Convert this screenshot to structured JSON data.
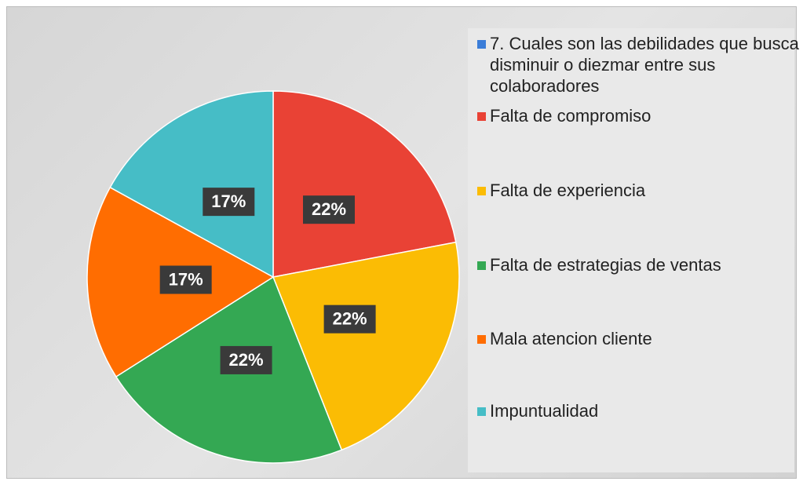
{
  "chart_data": {
    "type": "pie",
    "categories": [
      "7. Cuales son las debilidades que busca disminuir o diezmar entre sus colaboradores",
      "Falta de compromiso",
      "Falta de experiencia",
      "Falta de estrategias de ventas",
      "Mala atencion cliente",
      "Impuntualidad"
    ],
    "values": [
      0,
      22,
      22,
      22,
      17,
      17
    ],
    "value_labels": [
      null,
      "22%",
      "22%",
      "22%",
      "17%",
      "17%"
    ],
    "colors": [
      "#3b7dd8",
      "#e94235",
      "#fbbc04",
      "#34a853",
      "#ff6d01",
      "#46bdc6"
    ],
    "legend": "right"
  }
}
